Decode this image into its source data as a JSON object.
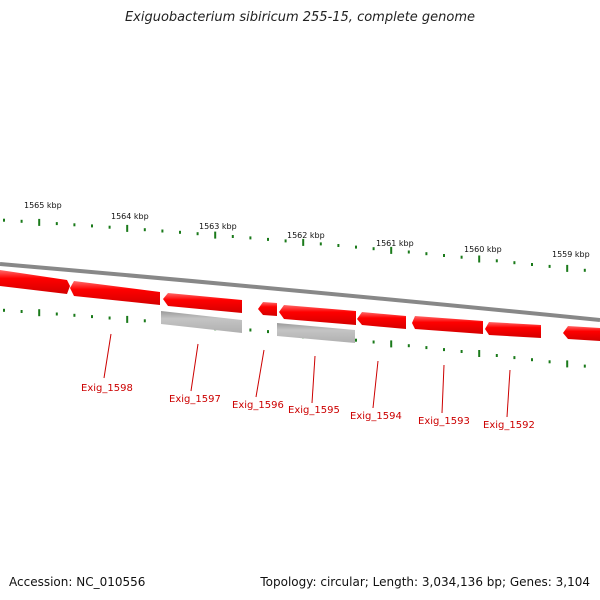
{
  "title": "Exiguobacterium sibiricum 255-15, complete genome",
  "footer": {
    "accession": "Accession: NC_010556",
    "topology": "Topology: circular; Length: 3,034,136 bp; Genes: 3,104"
  },
  "kbp_labels": [
    "1565 kbp",
    "1564 kbp",
    "1563 kbp",
    "1562 kbp",
    "1561 kbp",
    "1560 kbp",
    "1559 kbp"
  ],
  "gene_labels": [
    "Exig_1598",
    "Exig_1597",
    "Exig_1596",
    "Exig_1595",
    "Exig_1594",
    "Exig_1593",
    "Exig_1592"
  ],
  "colors": {
    "gene_fill": "#ff0000",
    "gene_fill_grey": "#bbbbbb",
    "backbone": "#888888",
    "tick": "#1a7a1a",
    "label_line": "#cc0000"
  }
}
